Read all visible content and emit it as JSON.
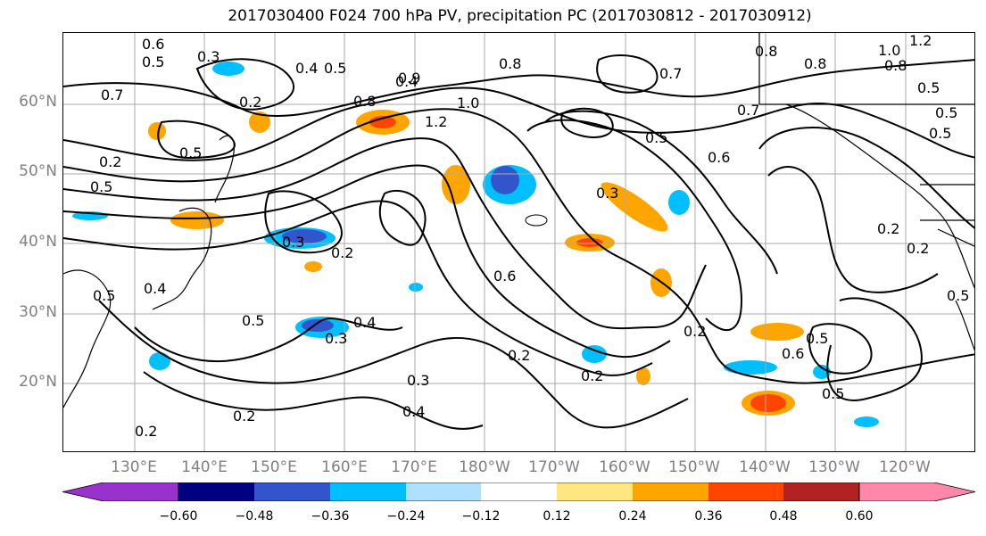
{
  "title": "2017030400 F024 700 hPa PV, precipitation PC (2017030812 - 2017030912)",
  "lat_labels": [
    "60°N",
    "50°N",
    "40°N",
    "30°N",
    "20°N"
  ],
  "lon_labels": [
    "130°E",
    "140°E",
    "150°E",
    "160°E",
    "170°E",
    "180°W",
    "170°W",
    "160°W",
    "150°W",
    "140°W",
    "130°W",
    "120°W"
  ],
  "colorbar": {
    "ticks": [
      "−0.60",
      "−0.48",
      "−0.36",
      "−0.24",
      "−0.12",
      "0.12",
      "0.24",
      "0.36",
      "0.48",
      "0.60"
    ],
    "colors": [
      "#9932cc",
      "#000080",
      "#3355cc",
      "#00bfff",
      "#b0e0ff",
      "#ffffff",
      "#ffe680",
      "#ffa500",
      "#ff4500",
      "#b22222",
      "#ff88aa"
    ]
  },
  "contour_labels": [
    "0.6",
    "0.5",
    "0.3",
    "0.4",
    "0.5",
    "0.7",
    "0.2",
    "0.8",
    "0.9",
    "0.4",
    "1.0",
    "1.2",
    "0.8",
    "0.7",
    "0.8",
    "0.8",
    "1.0",
    "1.2",
    "0.8",
    "0.5",
    "0.5",
    "0.7",
    "0.5",
    "0.6",
    "0.3",
    "0.2",
    "0.3",
    "0.2",
    "0.6",
    "0.5",
    "0.3",
    "0.4",
    "0.5",
    "0.2",
    "0.4",
    "0.2",
    "0.2",
    "0.3",
    "0.2",
    "0.2",
    "0.5",
    "0.6",
    "0.5",
    "0.2",
    "0.5",
    "0.2",
    "0.5",
    "0.4",
    "0.5",
    "0.5"
  ]
}
